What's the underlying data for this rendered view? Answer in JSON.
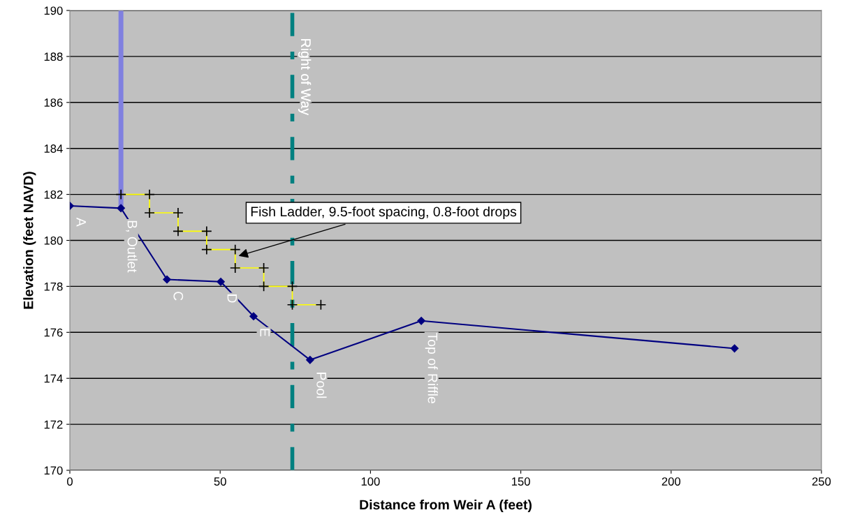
{
  "chart_data": {
    "type": "line",
    "xlabel": "Distance from Weir A (feet)",
    "ylabel": "Elevation (feet NAVD)",
    "xlim": [
      0,
      250
    ],
    "xticks": [
      0,
      50,
      100,
      150,
      200,
      250
    ],
    "ylim": [
      170,
      190
    ],
    "yticks": [
      170,
      172,
      174,
      176,
      178,
      180,
      182,
      184,
      186,
      188,
      190
    ],
    "grid": "y",
    "series": [
      {
        "color": "#000080",
        "marker": "diamond",
        "x": [
          0,
          17,
          32.3,
          50.2,
          61.1,
          79.9,
          116.9,
          221.1
        ],
        "values": [
          181.5,
          181.4,
          178.3,
          178.2,
          176.7,
          174.8,
          176.5,
          175.3
        ]
      },
      {
        "color": "#ffff00",
        "marker": "cross",
        "x": [
          17,
          26.5,
          26.5,
          36,
          36,
          45.5,
          45.5,
          55,
          55,
          64.5,
          64.5,
          74,
          74,
          83.5
        ],
        "values": [
          182,
          182,
          181.2,
          181.2,
          180.4,
          180.4,
          179.6,
          179.6,
          178.8,
          178.8,
          178,
          178,
          177.2,
          177.2
        ]
      },
      {
        "color": "#8080e0",
        "marker": "none",
        "x": [
          17,
          17
        ],
        "values": [
          181.4,
          190
        ]
      }
    ],
    "ref_lines": [
      {
        "axis": "x",
        "value": 74,
        "label": "Right of Way",
        "color": "#008080",
        "line_style": "dashed"
      }
    ],
    "annotations": [
      {
        "text": "A",
        "x": 0,
        "y": 181.5
      },
      {
        "text": "B, Outlet",
        "x": 17,
        "y": 181.4
      },
      {
        "text": "C",
        "x": 32.3,
        "y": 178.3
      },
      {
        "text": "D",
        "x": 50.2,
        "y": 178.2
      },
      {
        "text": "E",
        "x": 61.1,
        "y": 176.7
      },
      {
        "text": "Pool",
        "x": 79.9,
        "y": 174.8
      },
      {
        "text": "Top of Riffle",
        "x": 116.9,
        "y": 176.5
      },
      {
        "text": "Fish Ladder, 9.5-foot spacing, 0.8-foot drops",
        "x": 55.5,
        "y": 179.3
      }
    ]
  }
}
